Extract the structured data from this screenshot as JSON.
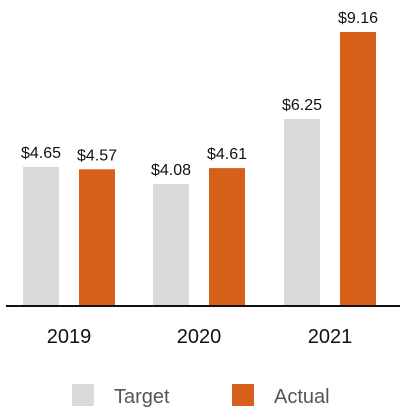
{
  "chart_data": {
    "type": "bar",
    "categories": [
      "2019",
      "2020",
      "2021"
    ],
    "series": [
      {
        "name": "Target",
        "values": [
          4.65,
          4.08,
          6.25
        ],
        "labels": [
          "$4.65",
          "$4.08",
          "$6.25"
        ],
        "color": "#d9d9d9"
      },
      {
        "name": "Actual",
        "values": [
          4.57,
          4.61,
          9.16
        ],
        "labels": [
          "$4.57",
          "$4.61",
          "$9.16"
        ],
        "color": "#d65f1a"
      }
    ],
    "ylim": [
      0,
      9.16
    ],
    "grid": false,
    "legend_position": "bottom-center",
    "axis_color": "#111111"
  }
}
